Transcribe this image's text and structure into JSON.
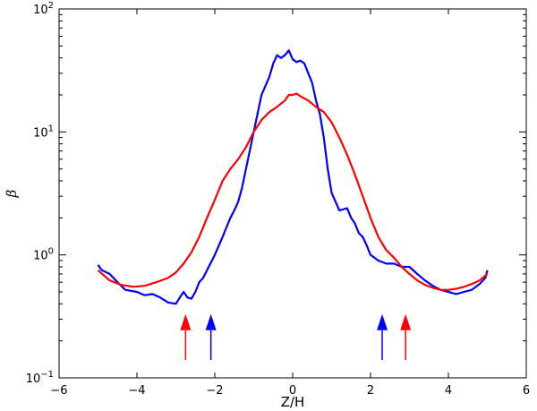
{
  "chart_data": {
    "type": "line",
    "title": "",
    "xlabel": "Z/H",
    "ylabel": "β",
    "xlim": [
      -6,
      6
    ],
    "ylim": [
      0.1,
      100
    ],
    "yscale": "log",
    "grid": false,
    "xticks": [
      -6,
      -4,
      -2,
      0,
      2,
      4,
      6
    ],
    "xtick_labels": [
      "−6",
      "−4",
      "−2",
      "0",
      "2",
      "4",
      "6"
    ],
    "yticks": [
      0.1,
      1,
      10,
      100
    ],
    "ytick_labels": [
      {
        "base": "10",
        "exp": "−1"
      },
      {
        "base": "10",
        "exp": "0"
      },
      {
        "base": "10",
        "exp": "1"
      },
      {
        "base": "10",
        "exp": "2"
      }
    ],
    "series": [
      {
        "color": "#0000ff",
        "x": [
          -5.0,
          -4.9,
          -4.7,
          -4.5,
          -4.3,
          -4.0,
          -3.8,
          -3.6,
          -3.4,
          -3.2,
          -3.0,
          -2.9,
          -2.8,
          -2.7,
          -2.6,
          -2.5,
          -2.4,
          -2.3,
          -2.2,
          -2.0,
          -1.8,
          -1.6,
          -1.5,
          -1.4,
          -1.3,
          -1.2,
          -1.0,
          -0.8,
          -0.6,
          -0.5,
          -0.4,
          -0.3,
          -0.2,
          -0.1,
          0.0,
          0.1,
          0.2,
          0.3,
          0.4,
          0.5,
          0.6,
          0.7,
          0.8,
          0.9,
          1.0,
          1.2,
          1.4,
          1.5,
          1.6,
          1.7,
          1.8,
          1.9,
          2.0,
          2.1,
          2.2,
          2.4,
          2.6,
          2.8,
          3.0,
          3.2,
          3.4,
          3.6,
          3.8,
          4.0,
          4.2,
          4.4,
          4.6,
          4.8,
          4.95,
          5.0
        ],
        "y": [
          0.83,
          0.75,
          0.7,
          0.6,
          0.52,
          0.5,
          0.47,
          0.48,
          0.45,
          0.41,
          0.4,
          0.45,
          0.5,
          0.45,
          0.44,
          0.5,
          0.6,
          0.65,
          0.75,
          1.0,
          1.4,
          2.0,
          2.3,
          2.7,
          3.5,
          5.0,
          10.0,
          20.0,
          28.0,
          36.0,
          42.0,
          40.0,
          42.0,
          46.0,
          39.0,
          37.0,
          38.0,
          36.0,
          30.0,
          25.0,
          18.0,
          14.0,
          9.0,
          5.0,
          3.2,
          2.3,
          2.4,
          2.0,
          1.8,
          1.5,
          1.4,
          1.2,
          1.0,
          0.95,
          0.9,
          0.85,
          0.85,
          0.8,
          0.8,
          0.7,
          0.62,
          0.56,
          0.52,
          0.5,
          0.48,
          0.5,
          0.52,
          0.58,
          0.65,
          0.75
        ]
      },
      {
        "color": "#ff0000",
        "x": [
          -5.0,
          -4.7,
          -4.4,
          -4.1,
          -3.8,
          -3.5,
          -3.2,
          -3.0,
          -2.8,
          -2.6,
          -2.4,
          -2.2,
          -2.0,
          -1.8,
          -1.6,
          -1.4,
          -1.2,
          -1.0,
          -0.8,
          -0.6,
          -0.4,
          -0.2,
          -0.1,
          0.0,
          0.1,
          0.2,
          0.4,
          0.6,
          0.8,
          1.0,
          1.2,
          1.4,
          1.6,
          1.8,
          2.0,
          2.2,
          2.4,
          2.6,
          2.8,
          3.0,
          3.2,
          3.4,
          3.6,
          3.8,
          4.0,
          4.2,
          4.4,
          4.6,
          4.8,
          5.0
        ],
        "y": [
          0.75,
          0.62,
          0.57,
          0.55,
          0.56,
          0.6,
          0.65,
          0.72,
          0.85,
          1.05,
          1.4,
          2.0,
          2.8,
          4.0,
          5.0,
          6.0,
          7.5,
          10.0,
          12.5,
          14.5,
          16.0,
          18.0,
          20.0,
          20.0,
          20.5,
          19.5,
          18.0,
          16.0,
          14.5,
          12.0,
          9.0,
          6.5,
          4.5,
          3.0,
          2.0,
          1.4,
          1.1,
          0.95,
          0.8,
          0.7,
          0.62,
          0.57,
          0.54,
          0.52,
          0.52,
          0.53,
          0.55,
          0.58,
          0.62,
          0.7
        ]
      }
    ],
    "annotations": [
      {
        "type": "arrow",
        "color": "#ff0000",
        "x": -2.75,
        "y_tail": 0.14,
        "y_head": 0.33
      },
      {
        "type": "arrow",
        "color": "#0000ff",
        "x": -2.1,
        "y_tail": 0.14,
        "y_head": 0.33
      },
      {
        "type": "arrow",
        "color": "#0000ff",
        "x": 2.3,
        "y_tail": 0.14,
        "y_head": 0.33
      },
      {
        "type": "arrow",
        "color": "#ff0000",
        "x": 2.9,
        "y_tail": 0.14,
        "y_head": 0.33
      }
    ]
  }
}
